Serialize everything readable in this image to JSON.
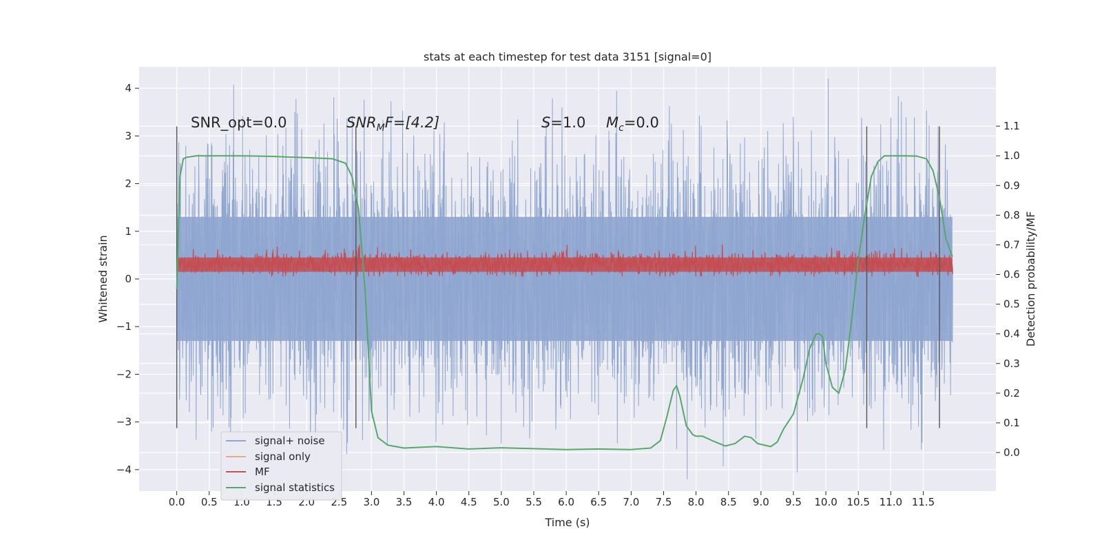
{
  "chart_data": {
    "type": "line",
    "title": "stats at each timestep for test data 3151 [signal=0]",
    "xlabel": "Time (s)",
    "ylabel_left": "Whitened strain",
    "ylabel_right": "Detection probability/MF",
    "xlim": [
      -0.58,
      12.62
    ],
    "ylim_left": [
      -4.45,
      4.45
    ],
    "ylim_right": [
      -0.13,
      1.3
    ],
    "x_ticks": [
      "0.0",
      "0.5",
      "1.0",
      "1.5",
      "2.0",
      "2.5",
      "3.0",
      "3.5",
      "4.0",
      "4.5",
      "5.0",
      "5.5",
      "6.0",
      "6.5",
      "7.0",
      "7.5",
      "8.0",
      "8.5",
      "9.0",
      "9.5",
      "10.0",
      "10.5",
      "11.0",
      "11.5"
    ],
    "y_ticks_left": [
      "−4",
      "−3",
      "−2",
      "−1",
      "0",
      "1",
      "2",
      "3",
      "4"
    ],
    "y_ticks_right": [
      "0.0",
      "0.1",
      "0.2",
      "0.3",
      "0.4",
      "0.5",
      "0.6",
      "0.7",
      "0.8",
      "0.9",
      "1.0",
      "1.1"
    ],
    "grid": true,
    "legend_position": "lower-left",
    "annotations": {
      "snr_opt": "SNR_opt=0.0",
      "snr_mf_base": "SNR",
      "snr_mf_sub": "M",
      "snr_mf_rest": "F=[4.2]",
      "s_label": "S",
      "s_value": "=1.0",
      "mc_base": "M",
      "mc_sub": "c",
      "mc_value": "=0.0"
    },
    "vertical_markers": [
      0.0,
      2.76,
      10.63,
      11.75
    ],
    "series": [
      {
        "name": "signal+ noise",
        "color": "#8fa6cf",
        "description_values": "dense whitened noise, range about -4 to 4"
      },
      {
        "name": "signal only",
        "color": "#e8a88a",
        "values": []
      },
      {
        "name": "MF",
        "color": "#c44e52",
        "description_values": "noisy around 0.3 strain, range 0.05 to 0.7"
      },
      {
        "name": "signal statistics",
        "color": "#55a868",
        "x": [
          0.0,
          0.05,
          0.1,
          0.15,
          0.3,
          0.6,
          1.0,
          1.5,
          2.0,
          2.4,
          2.6,
          2.7,
          2.8,
          2.9,
          2.95,
          3.0,
          3.1,
          3.25,
          3.5,
          4.0,
          4.5,
          5.0,
          5.5,
          6.0,
          6.5,
          7.0,
          7.3,
          7.45,
          7.55,
          7.65,
          7.7,
          7.75,
          7.85,
          7.95,
          8.0,
          8.1,
          8.25,
          8.45,
          8.6,
          8.75,
          8.85,
          8.95,
          9.05,
          9.15,
          9.25,
          9.35,
          9.5,
          9.65,
          9.75,
          9.85,
          9.9,
          9.95,
          10.0,
          10.1,
          10.2,
          10.3,
          10.4,
          10.5,
          10.6,
          10.7,
          10.8,
          10.9,
          11.0,
          11.2,
          11.4,
          11.55,
          11.65,
          11.75,
          11.85,
          11.95
        ],
        "y": [
          0.55,
          0.93,
          0.99,
          0.995,
          1.0,
          1.0,
          1.0,
          0.998,
          0.994,
          0.99,
          0.975,
          0.93,
          0.82,
          0.55,
          0.35,
          0.14,
          0.05,
          0.025,
          0.015,
          0.02,
          0.012,
          0.016,
          0.013,
          0.01,
          0.012,
          0.01,
          0.015,
          0.04,
          0.12,
          0.21,
          0.225,
          0.19,
          0.09,
          0.06,
          0.055,
          0.055,
          0.04,
          0.022,
          0.03,
          0.055,
          0.05,
          0.03,
          0.025,
          0.02,
          0.035,
          0.08,
          0.13,
          0.25,
          0.35,
          0.4,
          0.4,
          0.39,
          0.3,
          0.22,
          0.2,
          0.28,
          0.45,
          0.65,
          0.8,
          0.93,
          0.98,
          1.0,
          1.0,
          1.0,
          0.999,
          0.99,
          0.95,
          0.86,
          0.72,
          0.66
        ]
      }
    ]
  }
}
